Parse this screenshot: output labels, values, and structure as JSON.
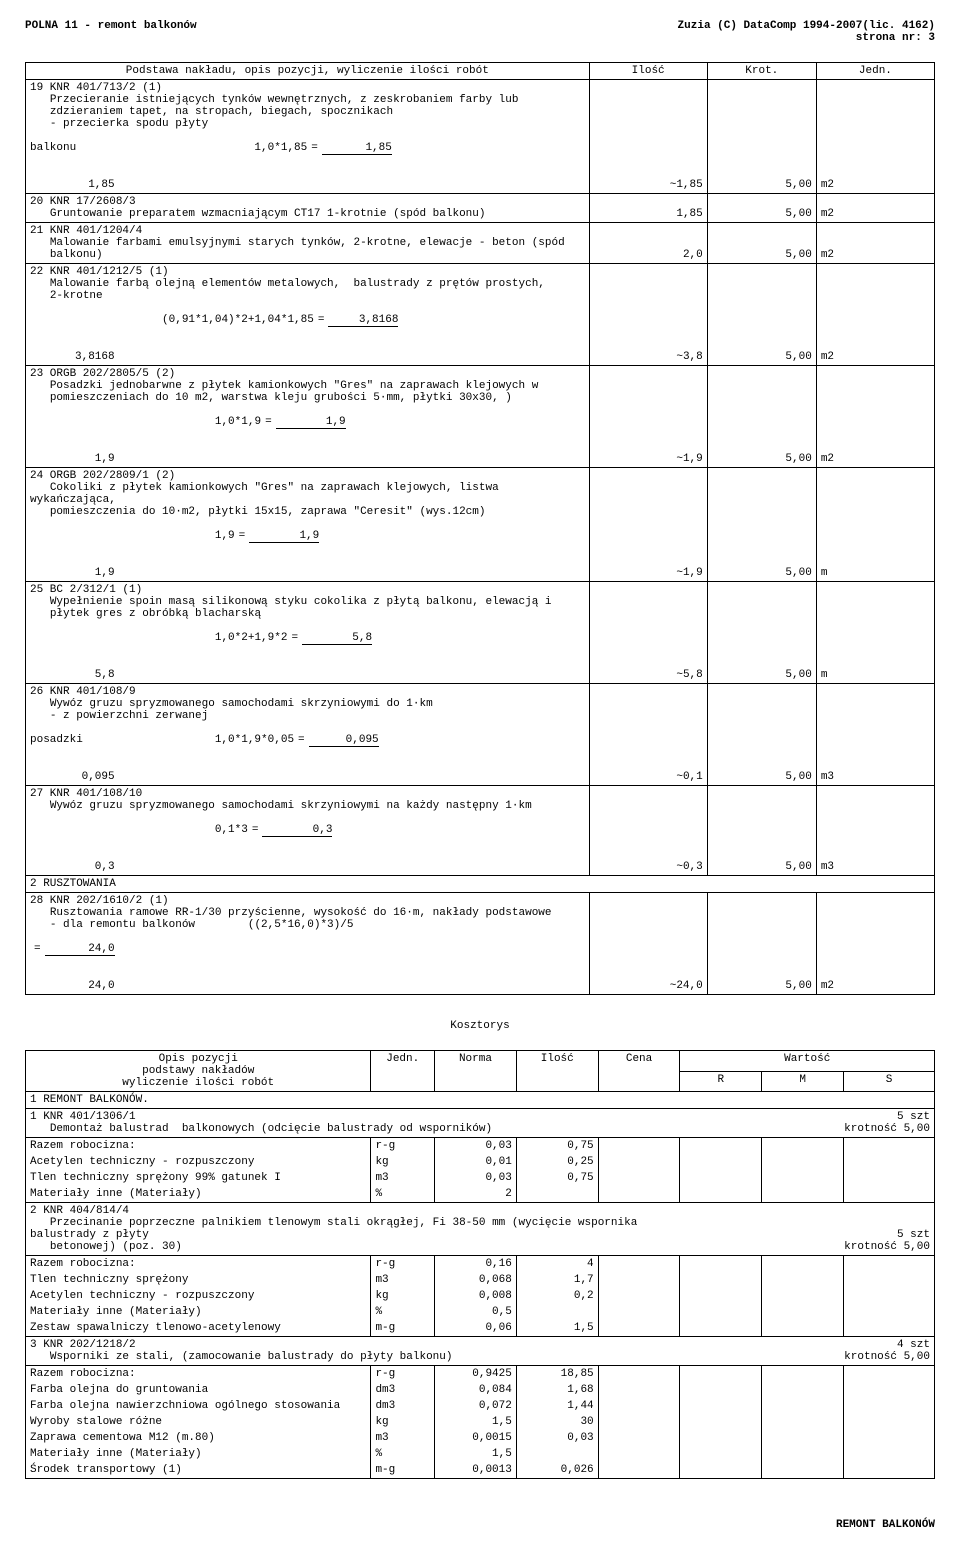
{
  "header": {
    "left": "POLNA  11  -  remont balkonów",
    "right1": "Zuzia (C) DataComp 1994-2007(lic. 4162)",
    "right2": "strona nr:     3"
  },
  "table1": {
    "headers": [
      "Podstawa nakładu, opis pozycji, wyliczenie ilości robót",
      "Ilość",
      "Krot.",
      "Jedn."
    ],
    "rows": [
      {
        "n": "19",
        "code": "KNR 401/713/2 (1)",
        "desc": "Przecieranie istniejących tynków wewnętrznych, z zeskrobaniem farby lub\nzdzieraniem tapet, na stropach, biegach, spocznikach\n- przecierka spodu płyty",
        "calc": "balkonu                           1,0*1,85",
        "eq": "=",
        "val": "1,85",
        "sum": "1,85",
        "il": "~1,85",
        "kr": "5,00",
        "jm": "m2"
      },
      {
        "n": "20",
        "code": "KNR 17/2608/3",
        "desc": "Gruntowanie preparatem wzmacniającym CT17 1-krotnie (spód balkonu)",
        "il": "1,85",
        "kr": "5,00",
        "jm": "m2"
      },
      {
        "n": "21",
        "code": "KNR 401/1204/4",
        "desc": "Malowanie farbami emulsyjnymi starych tynków, 2-krotne, elewacje - beton (spód\nbalkonu)",
        "il": "2,0",
        "kr": "5,00",
        "jm": "m2"
      },
      {
        "n": "22",
        "code": "KNR 401/1212/5 (1)",
        "desc": "Malowanie farbą olejną elementów metalowych,  balustrady z prętów prostych,\n2-krotne",
        "calc": "                    (0,91*1,04)*2+1,04*1,85",
        "eq": "=",
        "val": "3,8168",
        "sum": "3,8168",
        "il": "~3,8",
        "kr": "5,00",
        "jm": "m2"
      },
      {
        "n": "23",
        "code": "ORGB 202/2805/5 (2)",
        "desc": "Posadzki jednobarwne z płytek kamionkowych \"Gres\" na zaprawach klejowych w\npomieszczeniach do 10 m2, warstwa kleju grubości 5·mm, płytki 30x30, )",
        "calc": "                            1,0*1,9",
        "eq": "=",
        "val": "1,9",
        "sum": "1,9",
        "il": "~1,9",
        "kr": "5,00",
        "jm": "m2"
      },
      {
        "n": "24",
        "code": "ORGB 202/2809/1 (2)",
        "desc": "Cokoliki z płytek kamionkowych \"Gres\" na zaprawach klejowych, listwa wykańczająca,\npomieszczenia do 10·m2, płytki 15x15, zaprawa \"Ceresit\" (wys.12cm)",
        "calc": "                            1,9",
        "eq": "=",
        "val": "1,9",
        "sum": "1,9",
        "il": "~1,9",
        "kr": "5,00",
        "jm": "m"
      },
      {
        "n": "25",
        "code": "BC 2/312/1 (1)",
        "desc": "Wypełnienie spoin masą silikonową styku cokolika z płytą balkonu, elewacją i\npłytek gres z obróbką blacharską",
        "calc": "                            1,0*2+1,9*2",
        "eq": "=",
        "val": "5,8",
        "sum": "5,8",
        "il": "~5,8",
        "kr": "5,00",
        "jm": "m"
      },
      {
        "n": "26",
        "code": "KNR 401/108/9",
        "desc": "Wywóz gruzu spryzmowanego samochodami skrzyniowymi do 1·km\n- z powierzchni zerwanej",
        "calc": "posadzki                    1,0*1,9*0,05",
        "eq": "=",
        "val": "0,095",
        "sum": "0,095",
        "il": "~0,1",
        "kr": "5,00",
        "jm": "m3"
      },
      {
        "n": "27",
        "code": "KNR 401/108/10",
        "desc": "Wywóz gruzu spryzmowanego samochodami skrzyniowymi na każdy następny 1·km",
        "calc": "                            0,1*3",
        "eq": "=",
        "val": "0,3",
        "sum": "0,3",
        "il": "~0,3",
        "kr": "5,00",
        "jm": "m3"
      },
      {
        "sec": "2",
        "sectitle": "RUSZTOWANIA"
      },
      {
        "n": "28",
        "code": "KNR 202/1610/2 (1)",
        "desc": "Rusztowania ramowe RR-1/30 przyścienne, wysokość do 16·m, nakłady podstawowe\n- dla remontu balkonów        ((2,5*16,0)*3)/5",
        "eq": "=",
        "val": "24,0",
        "sum": "24,0",
        "il": "~24,0",
        "kr": "5,00",
        "jm": "m2"
      }
    ]
  },
  "kosz_title": "Kosztorys",
  "table2": {
    "h1": [
      "Opis pozycji",
      "Jedn.",
      "Norma",
      "Ilość",
      "Cena",
      "Wartość"
    ],
    "h2_left": "podstawy nakładów\nwyliczenie ilości robót",
    "h2_rms": [
      "R",
      "M",
      "S"
    ],
    "sections": [
      {
        "n": "1",
        "title": "REMONT BALKONÓW."
      },
      {
        "n": "1",
        "code": "KNR 401/1306/1",
        "desc": "Demontaż balustrad  balkonowych (odcięcie balustrady od wsporników)",
        "qty": "5 szt",
        "krot": "krotność 5,00",
        "lines": [
          [
            "Razem robocizna:",
            "r-g",
            "0,03",
            "0,75"
          ],
          [
            "Acetylen techniczny - rozpuszczony",
            "kg",
            "0,01",
            "0,25"
          ],
          [
            "Tlen techniczny sprężony 99% gatunek I",
            "m3",
            "0,03",
            "0,75"
          ],
          [
            "Materiały inne (Materiały)",
            "%",
            "2",
            ""
          ]
        ]
      },
      {
        "n": "2",
        "code": "KNR 404/814/4",
        "desc": "Przecinanie poprzeczne palnikiem tlenowym stali okrągłej, Fi 38-50 mm (wycięcie wspornika balustrady z płyty\nbetonowej) (poz. 30)",
        "qty": "5 szt",
        "krot": "krotność 5,00",
        "lines": [
          [
            "Razem robocizna:",
            "r-g",
            "0,16",
            "4"
          ],
          [
            "Tlen techniczny sprężony",
            "m3",
            "0,068",
            "1,7"
          ],
          [
            "Acetylen techniczny - rozpuszczony",
            "kg",
            "0,008",
            "0,2"
          ],
          [
            "Materiały inne (Materiały)",
            "%",
            "0,5",
            ""
          ],
          [
            "Zestaw spawalniczy tlenowo-acetylenowy",
            "m-g",
            "0,06",
            "1,5"
          ]
        ]
      },
      {
        "n": "3",
        "code": "KNR 202/1218/2",
        "desc": "Wsporniki ze stali, (zamocowanie balustrady do płyty balkonu)",
        "qty": "4 szt",
        "krot": "krotność 5,00",
        "lines": [
          [
            "Razem robocizna:",
            "r-g",
            "0,9425",
            "18,85"
          ],
          [
            "Farba olejna do gruntowania",
            "dm3",
            "0,084",
            "1,68"
          ],
          [
            "Farba olejna nawierzchniowa ogólnego stosowania",
            "dm3",
            "0,072",
            "1,44"
          ],
          [
            "Wyroby stalowe różne",
            "kg",
            "1,5",
            "30"
          ],
          [
            "Zaprawa cementowa M12 (m.80)",
            "m3",
            "0,0015",
            "0,03"
          ],
          [
            "Materiały inne (Materiały)",
            "%",
            "1,5",
            ""
          ],
          [
            "Środek transportowy (1)",
            "m-g",
            "0,0013",
            "0,026"
          ]
        ]
      }
    ]
  },
  "footer": "REMONT BALKONÓW"
}
